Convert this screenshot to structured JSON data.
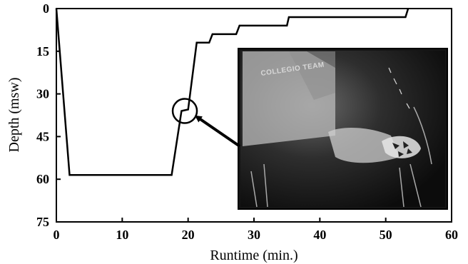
{
  "chart_data": {
    "type": "line",
    "xlabel": "Runtime (min.)",
    "ylabel": "Depth (msw)",
    "xlim": [
      0,
      60
    ],
    "ylim": [
      0,
      75
    ],
    "y_inverted": true,
    "grid": false,
    "x_ticks": [
      0,
      10,
      20,
      30,
      40,
      50,
      60
    ],
    "y_ticks": [
      0,
      15,
      30,
      45,
      60,
      75
    ],
    "series": [
      {
        "x": [
          0,
          2,
          17.5,
          19,
          20,
          21.3,
          23.2,
          23.7,
          27.3,
          27.8,
          35,
          35.3,
          53,
          53.4
        ],
        "y": [
          0,
          58.5,
          58.5,
          36,
          35.5,
          12,
          12,
          9,
          9,
          6,
          6,
          3,
          3,
          0
        ]
      }
    ],
    "annotation": {
      "circle_at": {
        "x": 19.5,
        "y": 36
      },
      "arrow_from_photo_to_circle": true
    },
    "inset_photo": {
      "description_icon": "diver-photo",
      "visible_text": "COLLEGIO TEAM"
    },
    "colors": {
      "line": "#000000",
      "axis": "#000000",
      "photo_background": "#151515"
    }
  }
}
